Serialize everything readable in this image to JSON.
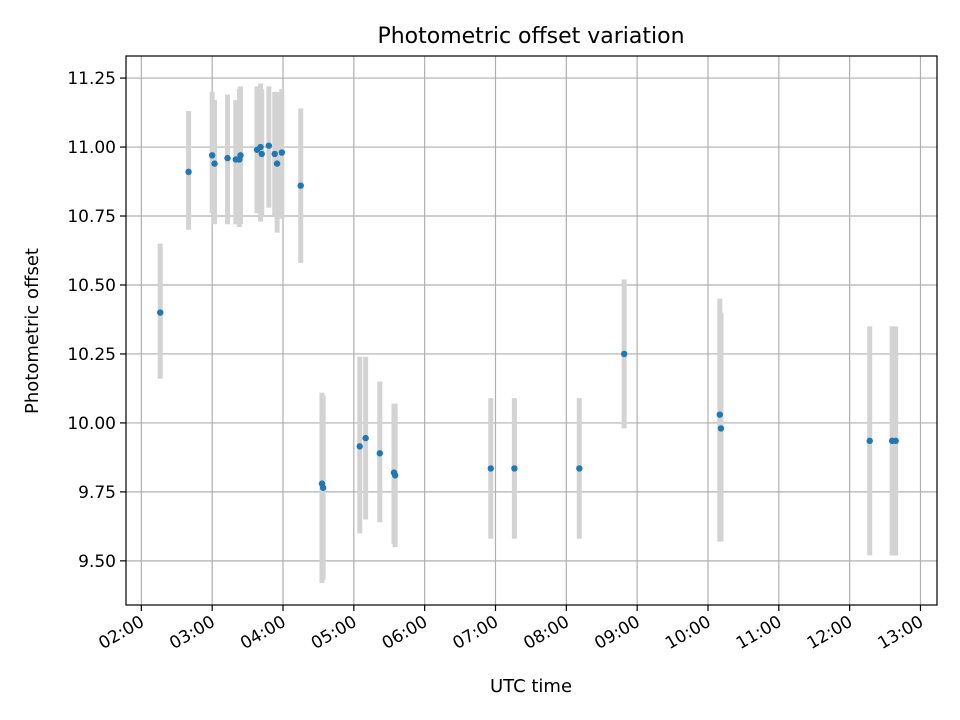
{
  "chart_data": {
    "type": "scatter",
    "title": "Photometric offset variation",
    "xlabel": "UTC time",
    "ylabel": "Photometric offset",
    "grid": true,
    "x_unit": "UTC hour",
    "xlim": [
      "01:47",
      "13:14"
    ],
    "ylim": [
      9.34,
      11.33
    ],
    "x_ticks": [
      "02:00",
      "03:00",
      "04:00",
      "05:00",
      "06:00",
      "07:00",
      "08:00",
      "09:00",
      "10:00",
      "11:00",
      "12:00",
      "13:00"
    ],
    "y_ticks": [
      "9.50",
      "9.75",
      "10.00",
      "10.25",
      "10.50",
      "10.75",
      "11.00",
      "11.25"
    ],
    "colors": {
      "point": "#1f77b4",
      "errorbar": "#d3d3d3",
      "grid": "#b0b0b0"
    },
    "points": [
      {
        "x": "02:16",
        "y": 10.4,
        "err_low": 10.16,
        "err_high": 10.65
      },
      {
        "x": "02:40",
        "y": 10.91,
        "err_low": 10.7,
        "err_high": 11.13
      },
      {
        "x": "03:00",
        "y": 10.97,
        "err_low": 10.76,
        "err_high": 11.2
      },
      {
        "x": "03:02",
        "y": 10.94,
        "err_low": 10.72,
        "err_high": 11.17
      },
      {
        "x": "03:13",
        "y": 10.96,
        "err_low": 10.72,
        "err_high": 11.19
      },
      {
        "x": "03:20",
        "y": 10.955,
        "err_low": 10.72,
        "err_high": 11.17
      },
      {
        "x": "03:23",
        "y": 10.955,
        "err_low": 10.71,
        "err_high": 11.21
      },
      {
        "x": "03:24",
        "y": 10.97,
        "err_low": 10.72,
        "err_high": 11.22
      },
      {
        "x": "03:38",
        "y": 10.99,
        "err_low": 10.76,
        "err_high": 11.22
      },
      {
        "x": "03:41",
        "y": 11.0,
        "err_low": 10.73,
        "err_high": 11.23
      },
      {
        "x": "03:42",
        "y": 10.975,
        "err_low": 10.75,
        "err_high": 11.21
      },
      {
        "x": "03:48",
        "y": 11.005,
        "err_low": 10.78,
        "err_high": 11.22
      },
      {
        "x": "03:53",
        "y": 10.975,
        "err_low": 10.75,
        "err_high": 11.2
      },
      {
        "x": "03:55",
        "y": 10.94,
        "err_low": 10.69,
        "err_high": 11.2
      },
      {
        "x": "03:59",
        "y": 10.98,
        "err_low": 10.74,
        "err_high": 11.21
      },
      {
        "x": "04:15",
        "y": 10.86,
        "err_low": 10.58,
        "err_high": 11.14
      },
      {
        "x": "04:33",
        "y": 9.78,
        "err_low": 9.42,
        "err_high": 10.11
      },
      {
        "x": "04:34",
        "y": 9.765,
        "err_low": 9.43,
        "err_high": 10.1
      },
      {
        "x": "05:05",
        "y": 9.915,
        "err_low": 9.6,
        "err_high": 10.24
      },
      {
        "x": "05:10",
        "y": 9.945,
        "err_low": 9.65,
        "err_high": 10.24
      },
      {
        "x": "05:22",
        "y": 9.89,
        "err_low": 9.64,
        "err_high": 10.15
      },
      {
        "x": "05:34",
        "y": 9.82,
        "err_low": 9.56,
        "err_high": 10.07
      },
      {
        "x": "05:35",
        "y": 9.81,
        "err_low": 9.55,
        "err_high": 10.07
      },
      {
        "x": "06:56",
        "y": 9.835,
        "err_low": 9.58,
        "err_high": 10.09
      },
      {
        "x": "07:16",
        "y": 9.835,
        "err_low": 9.58,
        "err_high": 10.09
      },
      {
        "x": "08:11",
        "y": 9.835,
        "err_low": 9.58,
        "err_high": 10.09
      },
      {
        "x": "08:49",
        "y": 10.25,
        "err_low": 9.98,
        "err_high": 10.52
      },
      {
        "x": "10:10",
        "y": 10.03,
        "err_low": 9.57,
        "err_high": 10.45
      },
      {
        "x": "10:11",
        "y": 9.98,
        "err_low": 9.57,
        "err_high": 10.4
      },
      {
        "x": "12:17",
        "y": 9.935,
        "err_low": 9.52,
        "err_high": 10.35
      },
      {
        "x": "12:36",
        "y": 9.935,
        "err_low": 9.52,
        "err_high": 10.35
      },
      {
        "x": "12:39",
        "y": 9.935,
        "err_low": 9.52,
        "err_high": 10.35
      }
    ]
  }
}
